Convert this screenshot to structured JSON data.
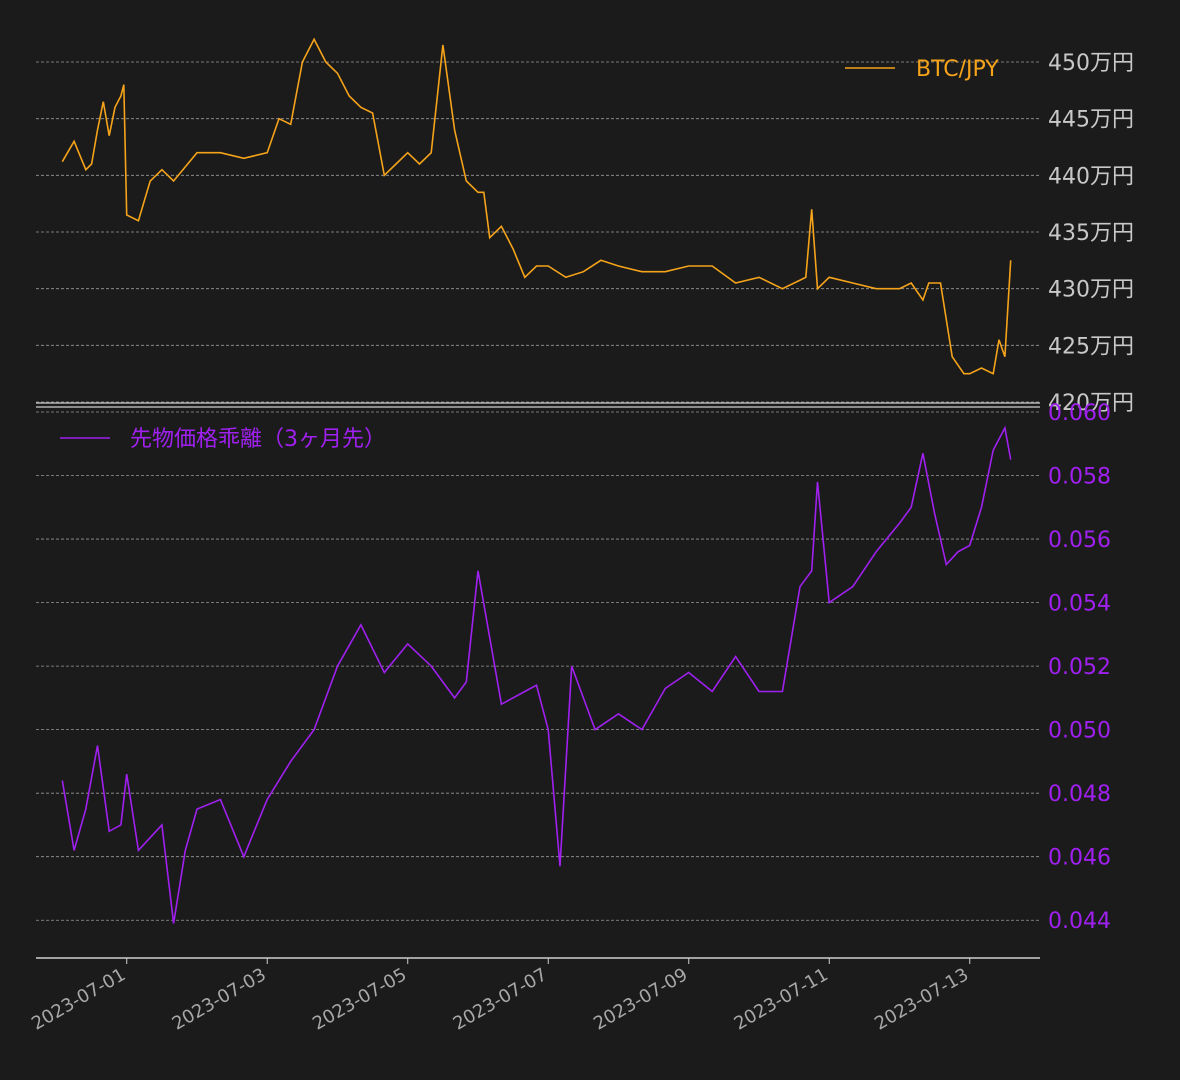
{
  "chart_data": [
    {
      "type": "line",
      "title": "",
      "xlabel": "",
      "ylabel": "",
      "ylim": [
        4200000,
        4530000
      ],
      "yticks": [
        4200000,
        4250000,
        4300000,
        4350000,
        4400000,
        4450000,
        4500000
      ],
      "ytick_labels": [
        "420万円",
        "425万円",
        "430万円",
        "435万円",
        "440万円",
        "445万円",
        "450万円"
      ],
      "legend_position": "top-right",
      "grid": "horizontal dashed",
      "color": "#f5a31a",
      "series": [
        {
          "name": "BTC/JPY",
          "x": [
            "2023-06-30T02:00",
            "2023-06-30T06:00",
            "2023-06-30T10:00",
            "2023-06-30T12:00",
            "2023-06-30T14:00",
            "2023-06-30T16:00",
            "2023-06-30T18:00",
            "2023-06-30T20:00",
            "2023-06-30T22:00",
            "2023-06-30T23:00",
            "2023-07-01T00:00",
            "2023-07-01T04:00",
            "2023-07-01T08:00",
            "2023-07-01T12:00",
            "2023-07-01T16:00",
            "2023-07-02T00:00",
            "2023-07-02T08:00",
            "2023-07-02T16:00",
            "2023-07-03T00:00",
            "2023-07-03T04:00",
            "2023-07-03T08:00",
            "2023-07-03T12:00",
            "2023-07-03T16:00",
            "2023-07-03T20:00",
            "2023-07-04T00:00",
            "2023-07-04T04:00",
            "2023-07-04T08:00",
            "2023-07-04T12:00",
            "2023-07-04T16:00",
            "2023-07-04T20:00",
            "2023-07-05T00:00",
            "2023-07-05T04:00",
            "2023-07-05T08:00",
            "2023-07-05T12:00",
            "2023-07-05T16:00",
            "2023-07-05T20:00",
            "2023-07-06T00:00",
            "2023-07-06T02:00",
            "2023-07-06T04:00",
            "2023-07-06T08:00",
            "2023-07-06T12:00",
            "2023-07-06T16:00",
            "2023-07-06T20:00",
            "2023-07-07T00:00",
            "2023-07-07T06:00",
            "2023-07-07T12:00",
            "2023-07-07T18:00",
            "2023-07-08T00:00",
            "2023-07-08T08:00",
            "2023-07-08T16:00",
            "2023-07-09T00:00",
            "2023-07-09T08:00",
            "2023-07-09T16:00",
            "2023-07-10T00:00",
            "2023-07-10T08:00",
            "2023-07-10T16:00",
            "2023-07-10T18:00",
            "2023-07-10T20:00",
            "2023-07-11T00:00",
            "2023-07-11T08:00",
            "2023-07-11T16:00",
            "2023-07-12T00:00",
            "2023-07-12T04:00",
            "2023-07-12T08:00",
            "2023-07-12T10:00",
            "2023-07-12T14:00",
            "2023-07-12T18:00",
            "2023-07-12T22:00",
            "2023-07-13T00:00",
            "2023-07-13T04:00",
            "2023-07-13T08:00",
            "2023-07-13T10:00",
            "2023-07-13T12:00",
            "2023-07-13T14:00"
          ],
          "y": [
            4412000,
            4430000,
            4405000,
            4410000,
            4440000,
            4465000,
            4435000,
            4460000,
            4470000,
            4480000,
            4365000,
            4360000,
            4395000,
            4405000,
            4395000,
            4420000,
            4420000,
            4415000,
            4420000,
            4450000,
            4445000,
            4500000,
            4520000,
            4500000,
            4490000,
            4470000,
            4460000,
            4455000,
            4400000,
            4410000,
            4420000,
            4410000,
            4420000,
            4515000,
            4440000,
            4395000,
            4385000,
            4385000,
            4345000,
            4355000,
            4335000,
            4310000,
            4320000,
            4320000,
            4310000,
            4315000,
            4325000,
            4320000,
            4315000,
            4315000,
            4320000,
            4320000,
            4305000,
            4310000,
            4300000,
            4310000,
            4370000,
            4300000,
            4310000,
            4305000,
            4300000,
            4300000,
            4305000,
            4290000,
            4305000,
            4305000,
            4240000,
            4225000,
            4225000,
            4230000,
            4225000,
            4255000,
            4240000,
            4325000
          ]
        }
      ]
    },
    {
      "type": "line",
      "title": "",
      "xlabel": "",
      "ylabel": "",
      "ylim": [
        0.043,
        0.06
      ],
      "yticks": [
        0.044,
        0.046,
        0.048,
        0.05,
        0.052,
        0.054,
        0.056,
        0.058,
        0.06
      ],
      "ytick_labels": [
        "0.044",
        "0.046",
        "0.048",
        "0.050",
        "0.052",
        "0.054",
        "0.056",
        "0.058",
        "0.060"
      ],
      "legend_position": "top-left",
      "grid": "horizontal dashed",
      "color": "#a020f0",
      "series": [
        {
          "name": "先物価格乖離（3ヶ月先）",
          "x": [
            "2023-06-30T02:00",
            "2023-06-30T06:00",
            "2023-06-30T10:00",
            "2023-06-30T14:00",
            "2023-06-30T18:00",
            "2023-06-30T22:00",
            "2023-07-01T00:00",
            "2023-07-01T04:00",
            "2023-07-01T08:00",
            "2023-07-01T12:00",
            "2023-07-01T16:00",
            "2023-07-01T20:00",
            "2023-07-02T00:00",
            "2023-07-02T08:00",
            "2023-07-02T16:00",
            "2023-07-03T00:00",
            "2023-07-03T08:00",
            "2023-07-03T16:00",
            "2023-07-04T00:00",
            "2023-07-04T08:00",
            "2023-07-04T16:00",
            "2023-07-05T00:00",
            "2023-07-05T08:00",
            "2023-07-05T16:00",
            "2023-07-05T20:00",
            "2023-07-06T00:00",
            "2023-07-06T08:00",
            "2023-07-06T16:00",
            "2023-07-06T20:00",
            "2023-07-07T00:00",
            "2023-07-07T04:00",
            "2023-07-07T08:00",
            "2023-07-07T16:00",
            "2023-07-08T00:00",
            "2023-07-08T08:00",
            "2023-07-08T16:00",
            "2023-07-09T00:00",
            "2023-07-09T08:00",
            "2023-07-09T16:00",
            "2023-07-10T00:00",
            "2023-07-10T08:00",
            "2023-07-10T14:00",
            "2023-07-10T18:00",
            "2023-07-10T20:00",
            "2023-07-11T00:00",
            "2023-07-11T08:00",
            "2023-07-11T16:00",
            "2023-07-12T00:00",
            "2023-07-12T04:00",
            "2023-07-12T08:00",
            "2023-07-12T12:00",
            "2023-07-12T16:00",
            "2023-07-12T20:00",
            "2023-07-13T00:00",
            "2023-07-13T04:00",
            "2023-07-13T08:00",
            "2023-07-13T12:00",
            "2023-07-13T14:00"
          ],
          "y": [
            0.0484,
            0.0462,
            0.0475,
            0.0495,
            0.0468,
            0.047,
            0.0486,
            0.0462,
            0.0466,
            0.047,
            0.0439,
            0.0462,
            0.0475,
            0.0478,
            0.046,
            0.0478,
            0.049,
            0.05,
            0.052,
            0.0533,
            0.0518,
            0.0527,
            0.052,
            0.051,
            0.0515,
            0.055,
            0.0508,
            0.0512,
            0.0514,
            0.05,
            0.0457,
            0.052,
            0.05,
            0.0505,
            0.05,
            0.0513,
            0.0518,
            0.0512,
            0.0523,
            0.0512,
            0.0512,
            0.0545,
            0.055,
            0.0578,
            0.054,
            0.0545,
            0.0556,
            0.0565,
            0.057,
            0.0587,
            0.0568,
            0.0552,
            0.0556,
            0.0558,
            0.057,
            0.0588,
            0.0595,
            0.0585
          ]
        }
      ]
    }
  ],
  "x_axis": {
    "ticks": [
      "2023-07-01",
      "2023-07-03",
      "2023-07-05",
      "2023-07-07",
      "2023-07-09",
      "2023-07-11",
      "2023-07-13"
    ],
    "range": [
      "2023-06-29T17:00",
      "2023-07-14T00:00"
    ]
  }
}
